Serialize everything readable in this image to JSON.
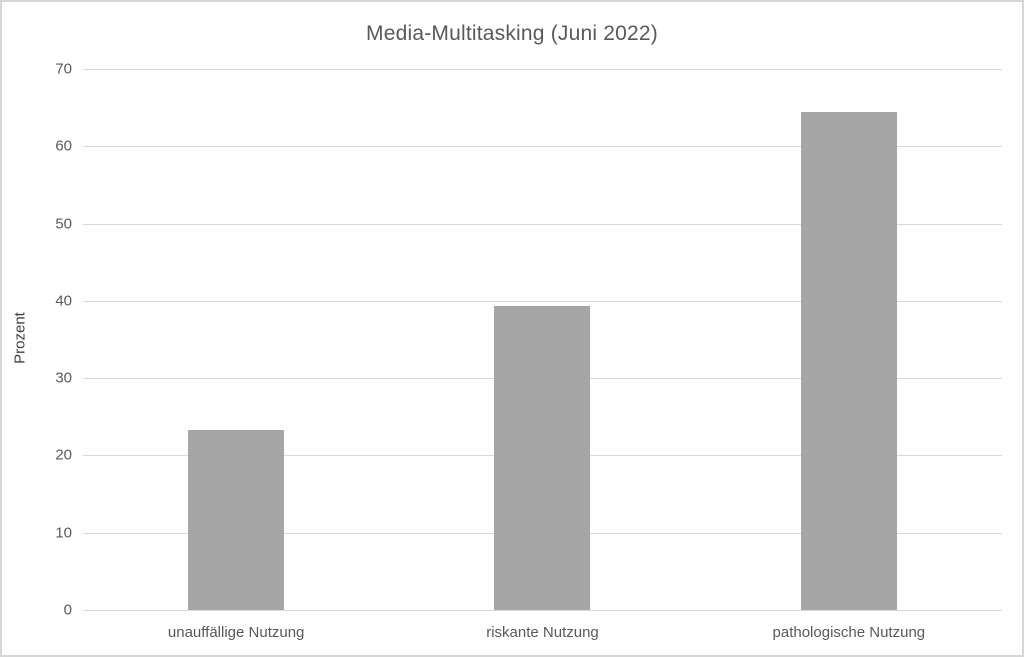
{
  "chart_data": {
    "type": "bar",
    "title": "Media-Multitasking (Juni 2022)",
    "categories": [
      "unauffällige Nutzung",
      "riskante Nutzung",
      "pathologische Nutzung"
    ],
    "values": [
      23.3,
      39.4,
      64.5
    ],
    "xlabel": "",
    "ylabel": "Prozent",
    "ylim": [
      0,
      70
    ],
    "ytick_step": 10,
    "grid": true,
    "legend": false,
    "colors": {
      "bar": "#a6a6a6",
      "gridline": "#d9d9d9",
      "text": "#595959",
      "title": "#595959",
      "canvas_border": "#d6d6d6"
    }
  }
}
